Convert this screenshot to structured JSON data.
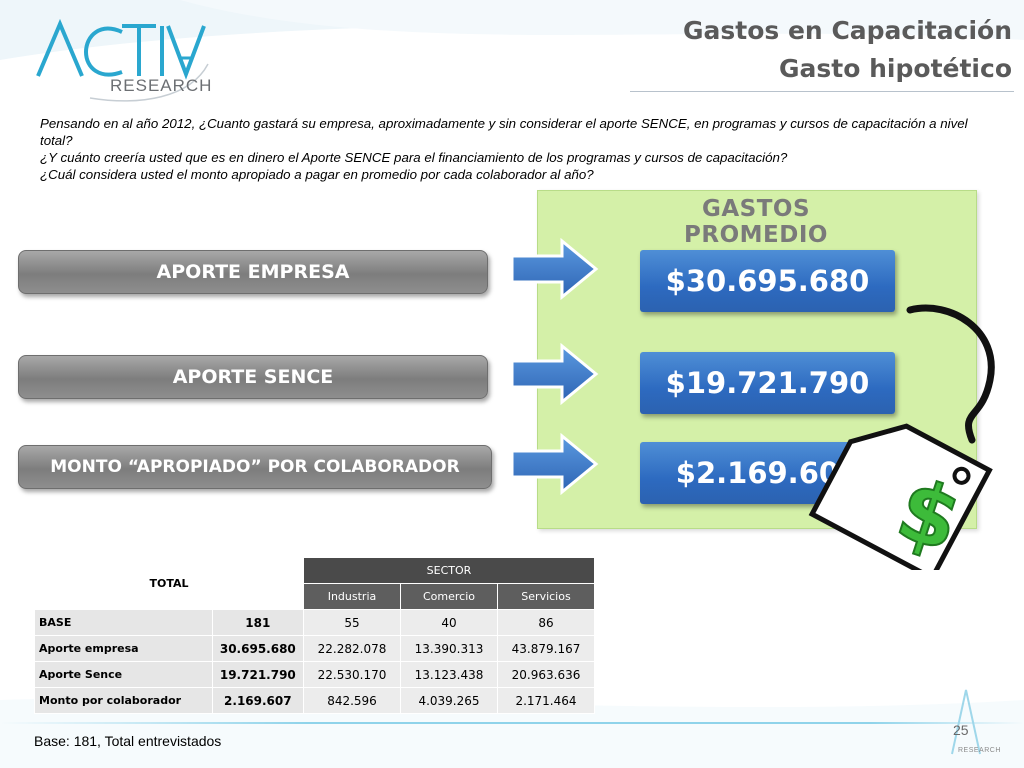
{
  "logo": {
    "main": "ACTIVA",
    "sub": "RESEARCH"
  },
  "header": {
    "title": "Gastos en Capacitación",
    "subtitle": "Gasto hipotético"
  },
  "question": {
    "line1": "Pensando en al año 2012, ¿Cuanto gastará su empresa, aproximadamente y sin considerar el aporte SENCE, en programas y cursos de capacitación a nivel total?",
    "line2": "¿Y cuánto creería usted que es en dinero el Aporte SENCE para el financiamiento de los programas y cursos de capacitación?",
    "line3": "¿Cuál considera usted el monto apropiado a pagar en promedio por cada colaborador al año?"
  },
  "panel": {
    "title": "GASTOS PROMEDIO",
    "rows": [
      {
        "label": "APORTE EMPRESA",
        "value": "$30.695.680"
      },
      {
        "label": "APORTE SENCE",
        "value": "$19.721.790"
      },
      {
        "label": "MONTO “APROPIADO” POR COLABORADOR",
        "value": "$2.169.607"
      }
    ],
    "tag_symbol": "$"
  },
  "table": {
    "total_header": "TOTAL",
    "sector_header": "SECTOR",
    "columns": [
      "Industria",
      "Comercio",
      "Servicios"
    ],
    "rows": [
      {
        "label": "BASE",
        "total": "181",
        "values": [
          "55",
          "40",
          "86"
        ]
      },
      {
        "label": "Aporte empresa",
        "total": "30.695.680",
        "values": [
          "22.282.078",
          "13.390.313",
          "43.879.167"
        ]
      },
      {
        "label": "Aporte Sence",
        "total": "19.721.790",
        "values": [
          "22.530.170",
          "13.123.438",
          "20.963.636"
        ]
      },
      {
        "label": "Monto por colaborador",
        "total": "2.169.607",
        "values": [
          "842.596",
          "4.039.265",
          "2.171.464"
        ]
      }
    ]
  },
  "footer": {
    "base": "Base: 181, Total entrevistados",
    "page": "25",
    "logo_sub": "RESEARCH"
  },
  "colors": {
    "brand_blue": "#2aa7cf",
    "panel_green": "#d4f0a8",
    "value_blue": "#2d6ac0",
    "pill_grey": "#8e8e8e"
  }
}
